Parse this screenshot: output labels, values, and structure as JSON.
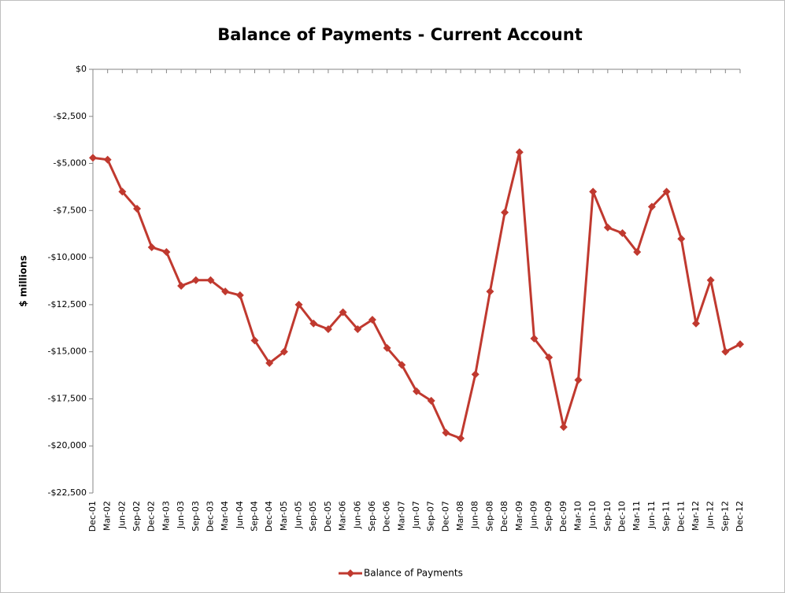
{
  "chart_data": {
    "type": "line",
    "title": "Balance of Payments - Current Account",
    "y_label": "$ millions",
    "categories": [
      "Dec-01",
      "Mar-02",
      "Jun-02",
      "Sep-02",
      "Dec-02",
      "Mar-03",
      "Jun-03",
      "Sep-03",
      "Dec-03",
      "Mar-04",
      "Jun-04",
      "Sep-04",
      "Dec-04",
      "Mar-05",
      "Jun-05",
      "Sep-05",
      "Dec-05",
      "Mar-06",
      "Jun-06",
      "Sep-06",
      "Dec-06",
      "Mar-07",
      "Jun-07",
      "Sep-07",
      "Dec-07",
      "Mar-08",
      "Jun-08",
      "Sep-08",
      "Dec-08",
      "Mar-09",
      "Jun-09",
      "Sep-09",
      "Dec-09",
      "Mar-10",
      "Jun-10",
      "Sep-10",
      "Dec-10",
      "Mar-11",
      "Jun-11",
      "Sep-11",
      "Dec-11",
      "Mar-12",
      "Jun-12",
      "Sep-12",
      "Dec-12"
    ],
    "series": [
      {
        "name": "Balance of Payments",
        "color": "#c0392f",
        "values": [
          -4700,
          -4800,
          -6500,
          -7400,
          -9450,
          -9700,
          -11500,
          -11200,
          -11200,
          -11800,
          -12000,
          -14400,
          -15600,
          -15000,
          -12500,
          -13500,
          -13800,
          -12900,
          -13800,
          -13300,
          -14800,
          -15700,
          -17100,
          -17600,
          -19300,
          -19600,
          -16200,
          -11800,
          -7600,
          -4400,
          -14300,
          -15300,
          -19000,
          -16500,
          -6500,
          -8400,
          -8700,
          -9700,
          -7300,
          -6500,
          -9000,
          -13500,
          -11200,
          -15000,
          -14600
        ]
      }
    ],
    "ylim": [
      -22500,
      0
    ],
    "yticks": [
      {
        "value": 0,
        "label": "$0"
      },
      {
        "value": -2500,
        "label": "-$2,500"
      },
      {
        "value": -5000,
        "label": "-$5,000"
      },
      {
        "value": -7500,
        "label": "-$7,500"
      },
      {
        "value": -10000,
        "label": "-$10,000"
      },
      {
        "value": -12500,
        "label": "-$12,500"
      },
      {
        "value": -15000,
        "label": "-$15,000"
      },
      {
        "value": -17500,
        "label": "-$17,500"
      },
      {
        "value": -20000,
        "label": "-$20,000"
      },
      {
        "value": -22500,
        "label": "-$22,500"
      }
    ],
    "legend": "bottom"
  }
}
